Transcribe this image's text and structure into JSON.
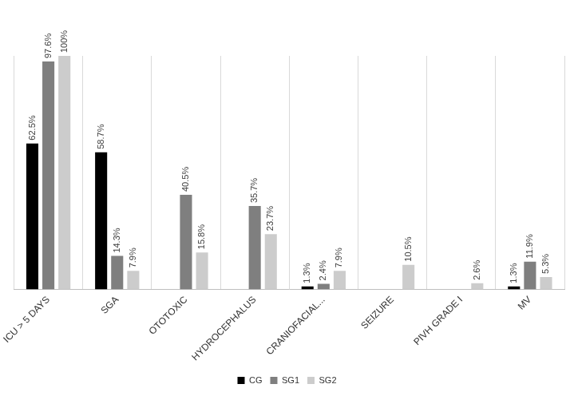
{
  "chart_data": {
    "type": "bar",
    "categories": [
      "ICU > 5 DAYS",
      "SGA",
      "OTOTOXIC",
      "HYDROCEPHALUS",
      "CRANIOFACIAL...",
      "SEIZURE",
      "PIVH GRADE I",
      "MV"
    ],
    "series": [
      {
        "name": "CG",
        "color": "#000000",
        "values": [
          62.5,
          58.7,
          null,
          null,
          1.3,
          null,
          null,
          1.3
        ],
        "value_labels": [
          "62.5%",
          "58.7%",
          null,
          null,
          "1.3%",
          null,
          null,
          "1.3%"
        ]
      },
      {
        "name": "SG1",
        "color": "#7f7f7f",
        "values": [
          97.6,
          14.3,
          40.5,
          35.7,
          2.4,
          null,
          null,
          11.9
        ],
        "value_labels": [
          "97.6%",
          "14.3%",
          "40.5%",
          "35.7%",
          "2.4%",
          null,
          null,
          "11.9%"
        ]
      },
      {
        "name": "SG2",
        "color": "#cccccc",
        "values": [
          100,
          7.9,
          15.8,
          23.7,
          7.9,
          10.5,
          2.6,
          5.3
        ],
        "value_labels": [
          "100%",
          "7.9%",
          "15.8%",
          "23.7%",
          "7.9%",
          "10.5%",
          "2.6%",
          "5.3%"
        ]
      }
    ],
    "ylim": [
      0,
      100
    ],
    "grid": true,
    "legend": "bottom",
    "data_labels": true,
    "tick_labels": "x"
  }
}
